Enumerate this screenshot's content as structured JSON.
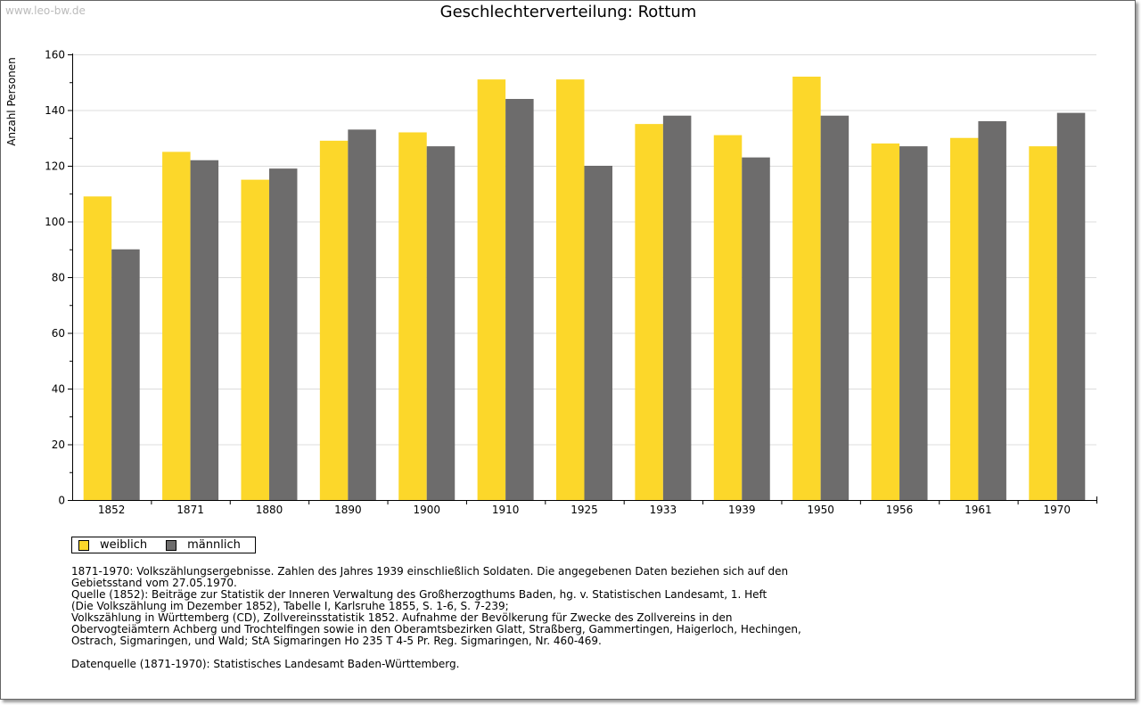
{
  "watermark": "www.leo-bw.de",
  "chart_data": {
    "type": "bar",
    "title": "Geschlechterverteilung: Rottum",
    "xlabel": "",
    "ylabel": "Anzahl Personen",
    "ylim": [
      0,
      160
    ],
    "yticks": [
      0,
      20,
      40,
      60,
      80,
      100,
      120,
      140,
      160
    ],
    "grid": true,
    "legend_position": "bottom-left",
    "categories": [
      "1852",
      "1871",
      "1880",
      "1890",
      "1900",
      "1910",
      "1925",
      "1933",
      "1939",
      "1950",
      "1956",
      "1961",
      "1970"
    ],
    "series": [
      {
        "name": "weiblich",
        "color": "#fcd72a",
        "values": [
          109,
          125,
          115,
          129,
          132,
          151,
          151,
          135,
          131,
          152,
          128,
          130,
          127
        ]
      },
      {
        "name": "männlich",
        "color": "#6d6c6c",
        "values": [
          90,
          122,
          119,
          133,
          127,
          144,
          120,
          138,
          123,
          138,
          127,
          136,
          139
        ]
      }
    ]
  },
  "notes": {
    "lines": [
      "1871-1970: Volkszählungsergebnisse. Zahlen des Jahres 1939 einschließlich Soldaten. Die angegebenen Daten beziehen sich auf den",
      "Gebietsstand vom 27.05.1970.",
      "Quelle (1852): Beiträge zur Statistik der Inneren Verwaltung des Großherzogthums Baden, hg. v. Statistischen Landesamt, 1. Heft",
      "(Die Volkszählung im Dezember 1852), Tabelle I, Karlsruhe 1855, S. 1-6, S. 7-239;",
      "Volkszählung in Württemberg (CD), Zollvereinsstatistik 1852. Aufnahme der Bevölkerung für Zwecke des Zollvereins in den",
      "Obervogteiämtern Achberg und Trochtelfingen sowie in den Oberamtsbezirken Glatt, Straßberg, Gammertingen, Haigerloch, Hechingen,",
      "Ostrach, Sigmaringen, und Wald; StA Sigmaringen Ho 235 T 4-5 Pr. Reg. Sigmaringen, Nr. 460-469."
    ],
    "source": "Datenquelle (1871-1970): Statistisches Landesamt Baden-Württemberg."
  }
}
